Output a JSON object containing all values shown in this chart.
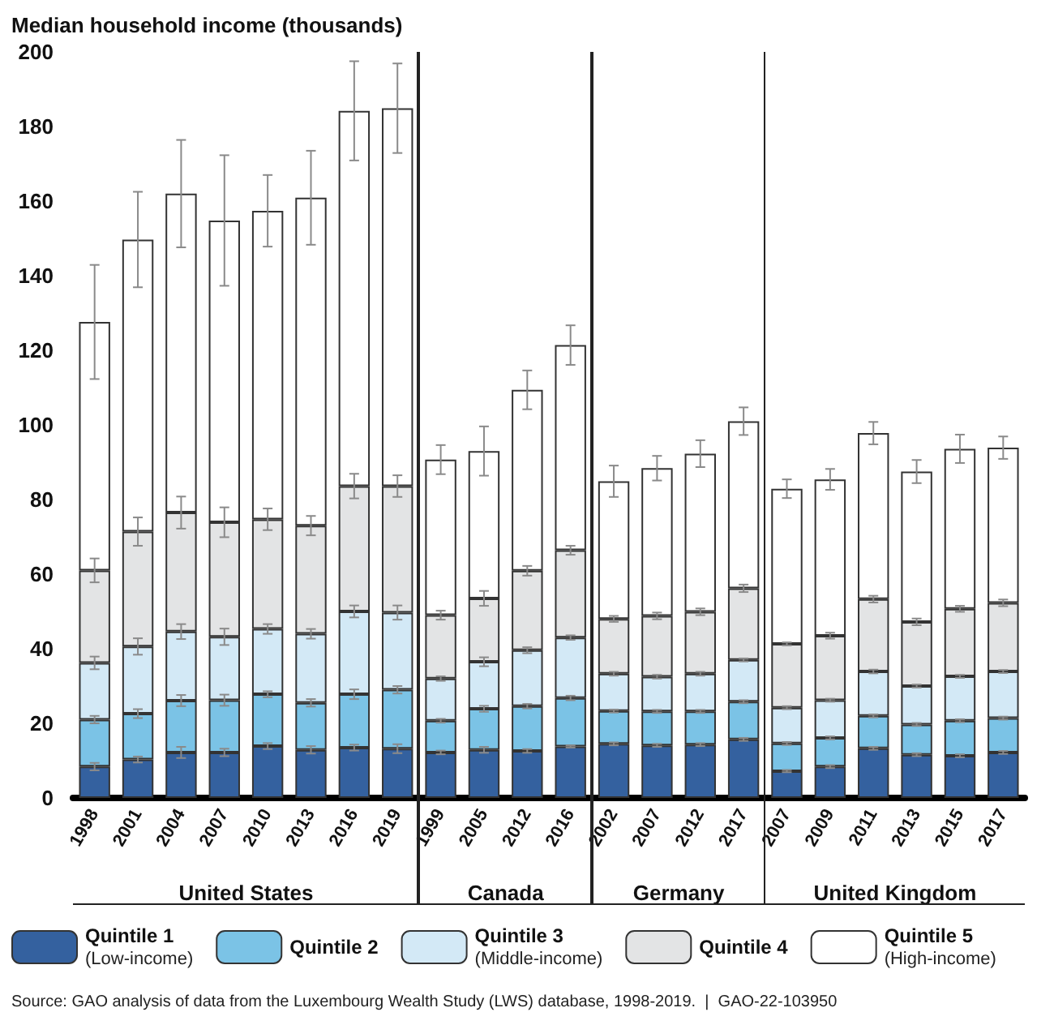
{
  "chart_data": [
    {
      "type": "bar",
      "stacked": true,
      "ylabel": "Median household income (thousands)",
      "xlabel": "United States",
      "categories": [
        "1998",
        "2001",
        "2004",
        "2007",
        "2010",
        "2013",
        "2016",
        "2019"
      ],
      "ylim": [
        0,
        200
      ],
      "yticks": [
        0,
        20,
        40,
        60,
        80,
        100,
        120,
        140,
        160,
        180,
        200
      ],
      "grid": false,
      "legend": "bottom",
      "annotations": [
        "Source: GAO analysis of data from the Luxembourg Wealth Study (LWS) database, 1998-2019.  |  GAO-22-103950"
      ],
      "series": [
        {
          "name": "Quintile 1 (Low-income)",
          "color": "#34619f",
          "values": [
            8.4,
            10.3,
            12.2,
            12.2,
            13.9,
            12.9,
            13.5,
            13.2
          ],
          "errors": [
            1,
            0.8,
            1.5,
            1,
            0.8,
            1,
            0.8,
            1.2
          ]
        },
        {
          "name": "Quintile 2",
          "color": "#7bc3e6",
          "values": [
            12.6,
            12.3,
            13.9,
            14.0,
            13.9,
            12.6,
            14.3,
            15.8
          ],
          "errors": [
            1,
            1.2,
            1.5,
            1.5,
            0.8,
            1,
            1.3,
            1
          ]
        },
        {
          "name": "Quintile 3 (Middle-income)",
          "color": "#d3e9f6",
          "values": [
            15.2,
            18.0,
            18.5,
            17.0,
            17.5,
            18.5,
            22.2,
            20.7
          ],
          "errors": [
            1.7,
            2.2,
            2,
            2.2,
            1.3,
            1.3,
            1.6,
            1.9
          ]
        },
        {
          "name": "Quintile 4",
          "color": "#e3e4e5",
          "values": [
            24.8,
            30.8,
            31.9,
            30.7,
            29.4,
            29.0,
            33.6,
            33.9
          ],
          "errors": [
            3.2,
            3.8,
            4.3,
            4,
            2.9,
            2.6,
            3.3,
            2.9
          ]
        },
        {
          "name": "Quintile 5 (High-income)",
          "color": "#ffffff",
          "values": [
            66.6,
            78.3,
            85.5,
            80.9,
            82.7,
            87.9,
            100.6,
            101.3
          ],
          "errors": [
            15.3,
            12.8,
            14.4,
            17.5,
            9.6,
            12.6,
            13.3,
            12
          ]
        }
      ]
    },
    {
      "type": "bar",
      "stacked": true,
      "xlabel": "Canada",
      "categories": [
        "1999",
        "2005",
        "2012",
        "2016"
      ],
      "ylim": [
        0,
        200
      ],
      "yticks": [
        0,
        20,
        40,
        60,
        80,
        100,
        120,
        140,
        160,
        180,
        200
      ],
      "grid": false,
      "tick_labels": "x",
      "series": [
        {
          "color": "#34619f",
          "values": [
            12.2,
            12.9,
            12.6,
            13.8
          ],
          "errors": [
            0.5,
            0.8,
            0.5,
            0.3
          ]
        },
        {
          "color": "#7bc3e6",
          "values": [
            8.5,
            11.0,
            12.0,
            13.0
          ],
          "errors": [
            0.5,
            0.8,
            0.6,
            0.6
          ]
        },
        {
          "color": "#d3e9f6",
          "values": [
            11.3,
            12.6,
            15.0,
            16.2
          ],
          "errors": [
            0.6,
            1.2,
            0.8,
            0.6
          ]
        },
        {
          "color": "#e3e4e5",
          "values": [
            17.0,
            17.0,
            21.3,
            23.4
          ],
          "errors": [
            1.2,
            2,
            1.3,
            1.2
          ]
        },
        {
          "color": "#ffffff",
          "values": [
            41.7,
            39.5,
            48.5,
            55.0
          ],
          "errors": [
            3.9,
            6.6,
            5.2,
            5.3
          ]
        }
      ]
    },
    {
      "type": "bar",
      "stacked": true,
      "xlabel": "Germany",
      "categories": [
        "2002",
        "2007",
        "2012",
        "2017"
      ],
      "ylim": [
        0,
        200
      ],
      "yticks": [
        0,
        20,
        40,
        60,
        80,
        100,
        120,
        140,
        160,
        180,
        200
      ],
      "grid": false,
      "tick_labels": "x",
      "series": [
        {
          "color": "#34619f",
          "values": [
            14.5,
            14.1,
            14.3,
            15.7
          ],
          "errors": [
            0.4,
            0.4,
            0.4,
            0.4
          ]
        },
        {
          "color": "#7bc3e6",
          "values": [
            8.8,
            9.1,
            8.9,
            10.1
          ],
          "errors": [
            0.4,
            0.4,
            0.4,
            0.4
          ]
        },
        {
          "color": "#d3e9f6",
          "values": [
            10.0,
            9.3,
            10.1,
            11.2
          ],
          "errors": [
            0.5,
            0.5,
            0.5,
            0.4
          ]
        },
        {
          "color": "#e3e4e5",
          "values": [
            14.7,
            16.3,
            16.6,
            19.2
          ],
          "errors": [
            0.8,
            0.9,
            0.9,
            1
          ]
        },
        {
          "color": "#ffffff",
          "values": [
            36.9,
            39.6,
            42.4,
            44.8
          ],
          "errors": [
            4.2,
            3.3,
            3.6,
            3.7
          ]
        }
      ]
    },
    {
      "type": "bar",
      "stacked": true,
      "xlabel": "United Kingdom",
      "categories": [
        "2007",
        "2009",
        "2011",
        "2013",
        "2015",
        "2017"
      ],
      "ylim": [
        0,
        200
      ],
      "yticks": [
        0,
        20,
        40,
        60,
        80,
        100,
        120,
        140,
        160,
        180,
        200
      ],
      "grid": false,
      "tick_labels": "x",
      "series": [
        {
          "color": "#34619f",
          "values": [
            7.2,
            8.4,
            13.3,
            11.6,
            11.3,
            12.2
          ],
          "errors": [
            0.3,
            0.4,
            0.4,
            0.4,
            0.4,
            0.4
          ]
        },
        {
          "color": "#7bc3e6",
          "values": [
            7.4,
            7.7,
            8.7,
            8.1,
            9.4,
            9.2
          ],
          "errors": [
            0.4,
            0.4,
            0.4,
            0.4,
            0.4,
            0.4
          ]
        },
        {
          "color": "#d3e9f6",
          "values": [
            9.6,
            10.1,
            11.9,
            10.3,
            11.9,
            12.5
          ],
          "errors": [
            0.4,
            0.4,
            0.5,
            0.4,
            0.4,
            0.4
          ]
        },
        {
          "color": "#e3e4e5",
          "values": [
            17.1,
            17.3,
            19.4,
            17.2,
            18.1,
            18.4
          ],
          "errors": [
            0.4,
            0.8,
            0.9,
            0.9,
            0.8,
            0.9
          ]
        },
        {
          "color": "#ffffff",
          "values": [
            41.6,
            41.9,
            44.5,
            40.3,
            42.9,
            41.6
          ],
          "errors": [
            2.5,
            2.8,
            3,
            3.1,
            3.8,
            3
          ]
        }
      ]
    }
  ]
}
